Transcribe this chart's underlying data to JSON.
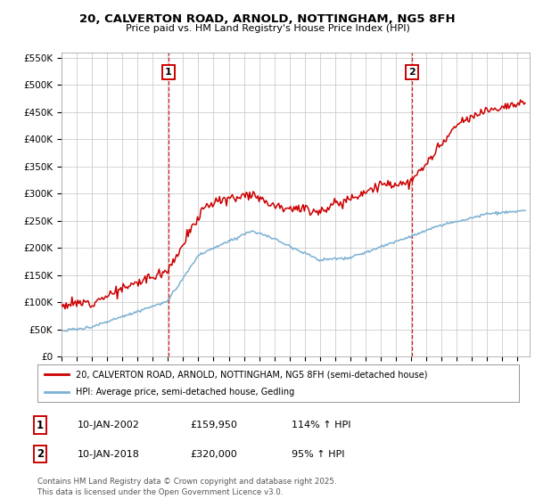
{
  "title": "20, CALVERTON ROAD, ARNOLD, NOTTINGHAM, NG5 8FH",
  "subtitle": "Price paid vs. HM Land Registry's House Price Index (HPI)",
  "legend_line1": "20, CALVERTON ROAD, ARNOLD, NOTTINGHAM, NG5 8FH (semi-detached house)",
  "legend_line2": "HPI: Average price, semi-detached house, Gedling",
  "purchase1_date": "10-JAN-2002",
  "purchase1_price": 159950,
  "purchase1_hpi": "114% ↑ HPI",
  "purchase2_date": "10-JAN-2018",
  "purchase2_price": 320000,
  "purchase2_hpi": "95% ↑ HPI",
  "footer": "Contains HM Land Registry data © Crown copyright and database right 2025.\nThis data is licensed under the Open Government Licence v3.0.",
  "red_color": "#cc0000",
  "blue_color": "#7ab0d4",
  "background_color": "#ffffff",
  "grid_color": "#cccccc",
  "ylim": [
    0,
    560000
  ],
  "yticks": [
    0,
    50000,
    100000,
    150000,
    200000,
    250000,
    300000,
    350000,
    400000,
    450000,
    500000,
    550000
  ],
  "xlim_start": 1995.0,
  "xlim_end": 2025.8,
  "purchase1_x": 2002.04,
  "purchase2_x": 2018.04
}
